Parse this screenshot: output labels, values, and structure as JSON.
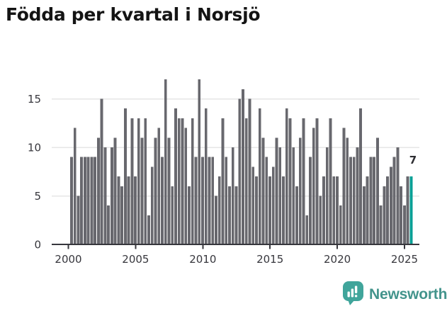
{
  "title": "Födda per kvartal i Norsjö",
  "chart_data": {
    "type": "bar",
    "title": "Födda per kvartal i Norsjö",
    "x_start": "2000-Q1",
    "x_end": "2025-Q2",
    "x_freq": "quarterly",
    "x_tick_labels": [
      "2000",
      "2005",
      "2010",
      "2015",
      "2020",
      "2025"
    ],
    "y_ticks": [
      0,
      5,
      10,
      15
    ],
    "ylim": [
      0,
      17.5
    ],
    "grid": "horizontal",
    "values": [
      9,
      12,
      5,
      9,
      9,
      9,
      9,
      9,
      11,
      15,
      10,
      4,
      10,
      11,
      7,
      6,
      14,
      7,
      13,
      7,
      13,
      11,
      13,
      3,
      8,
      11,
      12,
      9,
      17,
      11,
      6,
      14,
      13,
      13,
      12,
      6,
      13,
      9,
      17,
      9,
      14,
      9,
      9,
      5,
      7,
      13,
      9,
      6,
      10,
      6,
      15,
      16,
      13,
      15,
      8,
      7,
      14,
      11,
      9,
      7,
      8,
      11,
      10,
      7,
      14,
      13,
      10,
      6,
      11,
      13,
      3,
      9,
      12,
      13,
      5,
      7,
      10,
      13,
      7,
      7,
      4,
      12,
      11,
      9,
      9,
      10,
      14,
      6,
      7,
      9,
      9,
      11,
      4,
      6,
      7,
      8,
      9,
      10,
      6,
      4,
      7,
      7
    ],
    "highlight_last_bar": true,
    "highlight_value": 7,
    "annotation": "7",
    "bar_color": "#68686e",
    "highlight_color": "#0aa096",
    "axis_color": "#37373d",
    "grid_color": "#e6e6e6"
  },
  "footer": {
    "brand": "Newsworthy",
    "logo_color": "#40a59b"
  }
}
